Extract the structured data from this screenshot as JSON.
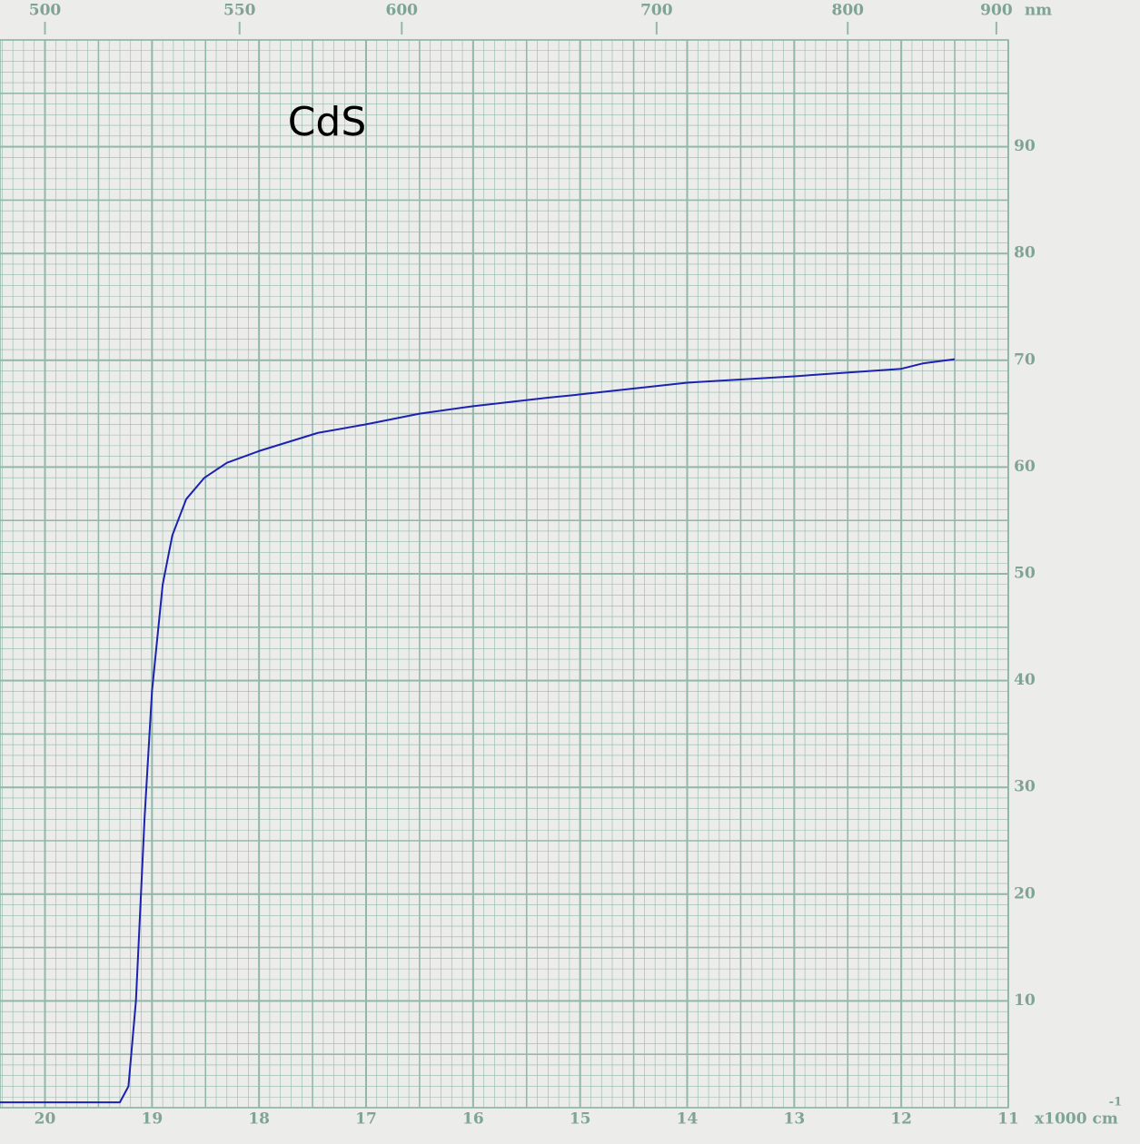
{
  "chart_data": {
    "type": "line",
    "title": "CdS",
    "x": [
      20.42,
      19.5,
      19.3,
      19.22,
      19.15,
      19.07,
      19.0,
      18.9,
      18.81,
      18.68,
      18.51,
      18.3,
      18.0,
      17.45,
      17.0,
      16.5,
      16.0,
      15.3,
      15.0,
      14.0,
      13.0,
      12.0,
      11.8,
      11.5
    ],
    "values": [
      0.5,
      0.5,
      0.5,
      2,
      10,
      27,
      39,
      49,
      53.6,
      57,
      59,
      60.4,
      61.5,
      63.2,
      64,
      65,
      65.7,
      66.5,
      66.8,
      67.9,
      68.5,
      69.2,
      69.7,
      70.1
    ],
    "color": "#1c22b0",
    "xlim": [
      20.42,
      11
    ],
    "xticks": [
      20,
      19,
      18,
      17,
      16,
      15,
      14,
      13,
      12,
      11
    ],
    "x_unit": "x1000 cm",
    "x_unit_exponent": "-1",
    "ylim": [
      0,
      100
    ],
    "yticks": [
      10,
      20,
      30,
      40,
      50,
      60,
      70,
      80,
      90
    ],
    "x2ticks": [
      500,
      550,
      600,
      700,
      800,
      900
    ],
    "x2_unit": "nm",
    "grid": true
  }
}
